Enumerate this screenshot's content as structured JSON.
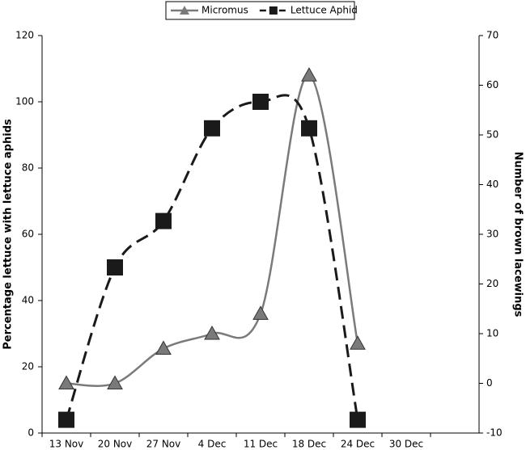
{
  "chart_data": {
    "type": "line",
    "categories": [
      "13 Nov",
      "20 Nov",
      "27 Nov",
      "4 Dec",
      "11 Dec",
      "18 Dec",
      "24 Dec",
      "30 Dec",
      null
    ],
    "series": [
      {
        "name": "Micromus",
        "color": "#7a7a7a",
        "marker": "triangle",
        "axis": "y2",
        "values": [
          0,
          0,
          7,
          10,
          14,
          62,
          8,
          null,
          null
        ]
      },
      {
        "name": "Lettuce Aphid",
        "color": "#1a1a1a",
        "marker": "square",
        "values": [
          4,
          50,
          64,
          92,
          100,
          92,
          4,
          null,
          null
        ]
      }
    ],
    "ylabel": "Percentage lettuce with lettuce aphids",
    "y2label": "Number of brown lacewings",
    "ylim": [
      0,
      120
    ],
    "yticks": [
      0,
      20,
      40,
      60,
      80,
      100,
      120
    ],
    "y2lim": [
      -10,
      70
    ],
    "y2ticks": [
      -10,
      0,
      10,
      20,
      30,
      40,
      50,
      60,
      70
    ],
    "legend": "top"
  }
}
